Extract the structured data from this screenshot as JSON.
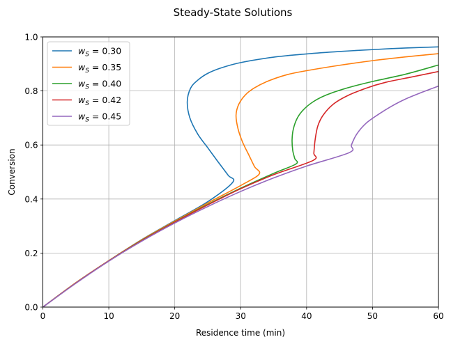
{
  "chart_data": {
    "type": "line",
    "title": "Steady-State Solutions",
    "xlabel": "Residence time (min)",
    "ylabel": "Conversion",
    "xlim": [
      0,
      60
    ],
    "ylim": [
      0,
      1.0
    ],
    "xticks": [
      0,
      10,
      20,
      30,
      40,
      50,
      60
    ],
    "yticks": [
      0.0,
      0.2,
      0.4,
      0.6,
      0.8,
      1.0
    ],
    "xtick_labels": [
      "0",
      "10",
      "20",
      "30",
      "40",
      "50",
      "60"
    ],
    "ytick_labels": [
      "0.0",
      "0.2",
      "0.4",
      "0.6",
      "0.8",
      "1.0"
    ],
    "grid": true,
    "legend_position": "upper-left",
    "series": [
      {
        "name": "w_S = 0.30",
        "legend_base": "w",
        "legend_sub": "S",
        "legend_value": " = 0.30",
        "color": "#1f77b4",
        "points": [
          [
            0,
            0
          ],
          [
            5,
            0.09
          ],
          [
            10,
            0.172
          ],
          [
            15,
            0.25
          ],
          [
            20,
            0.32
          ],
          [
            25,
            0.39
          ],
          [
            28.8,
            0.462
          ],
          [
            28.1,
            0.488
          ],
          [
            26.5,
            0.54
          ],
          [
            25,
            0.59
          ],
          [
            23.5,
            0.64
          ],
          [
            22.3,
            0.7
          ],
          [
            21.9,
            0.76
          ],
          [
            22.4,
            0.81
          ],
          [
            23.5,
            0.84
          ],
          [
            25,
            0.865
          ],
          [
            27,
            0.885
          ],
          [
            30,
            0.905
          ],
          [
            35,
            0.925
          ],
          [
            40,
            0.937
          ],
          [
            45,
            0.946
          ],
          [
            50,
            0.953
          ],
          [
            55,
            0.959
          ],
          [
            60,
            0.963
          ]
        ]
      },
      {
        "name": "w_S = 0.35",
        "legend_base": "w",
        "legend_sub": "S",
        "legend_value": " = 0.35",
        "color": "#ff7f0e",
        "points": [
          [
            0,
            0
          ],
          [
            5,
            0.09
          ],
          [
            10,
            0.172
          ],
          [
            15,
            0.249
          ],
          [
            20,
            0.318
          ],
          [
            25,
            0.385
          ],
          [
            30,
            0.45
          ],
          [
            32.8,
            0.492
          ],
          [
            32.1,
            0.52
          ],
          [
            31.3,
            0.56
          ],
          [
            30.3,
            0.61
          ],
          [
            29.6,
            0.66
          ],
          [
            29.3,
            0.71
          ],
          [
            29.7,
            0.75
          ],
          [
            30.7,
            0.785
          ],
          [
            32,
            0.81
          ],
          [
            34,
            0.835
          ],
          [
            37,
            0.86
          ],
          [
            40,
            0.875
          ],
          [
            45,
            0.895
          ],
          [
            50,
            0.912
          ],
          [
            55,
            0.926
          ],
          [
            60,
            0.938
          ]
        ]
      },
      {
        "name": "w_S = 0.40",
        "legend_base": "w",
        "legend_sub": "S",
        "legend_value": " = 0.40",
        "color": "#2ca02c",
        "points": [
          [
            0,
            0
          ],
          [
            5,
            0.089
          ],
          [
            10,
            0.171
          ],
          [
            15,
            0.247
          ],
          [
            20,
            0.315
          ],
          [
            25,
            0.38
          ],
          [
            30,
            0.44
          ],
          [
            35,
            0.495
          ],
          [
            38.4,
            0.53
          ],
          [
            38.2,
            0.55
          ],
          [
            37.9,
            0.58
          ],
          [
            37.8,
            0.62
          ],
          [
            38,
            0.66
          ],
          [
            38.6,
            0.7
          ],
          [
            39.5,
            0.73
          ],
          [
            41,
            0.76
          ],
          [
            43,
            0.785
          ],
          [
            46,
            0.81
          ],
          [
            50,
            0.835
          ],
          [
            55,
            0.862
          ],
          [
            60,
            0.896
          ]
        ]
      },
      {
        "name": "w_S = 0.42",
        "legend_base": "w",
        "legend_sub": "S",
        "legend_value": " = 0.42",
        "color": "#d62728",
        "points": [
          [
            0,
            0
          ],
          [
            5,
            0.089
          ],
          [
            10,
            0.171
          ],
          [
            15,
            0.246
          ],
          [
            20,
            0.314
          ],
          [
            25,
            0.378
          ],
          [
            30,
            0.438
          ],
          [
            35,
            0.49
          ],
          [
            41,
            0.543
          ],
          [
            41.1,
            0.57
          ],
          [
            41.3,
            0.62
          ],
          [
            41.7,
            0.67
          ],
          [
            42.5,
            0.71
          ],
          [
            44,
            0.75
          ],
          [
            46,
            0.78
          ],
          [
            49,
            0.81
          ],
          [
            52,
            0.832
          ],
          [
            56,
            0.852
          ],
          [
            60,
            0.872
          ]
        ]
      },
      {
        "name": "w_S = 0.45",
        "legend_base": "w",
        "legend_sub": "S",
        "legend_value": " = 0.45",
        "color": "#9467bd",
        "points": [
          [
            0,
            0
          ],
          [
            5,
            0.088
          ],
          [
            10,
            0.17
          ],
          [
            15,
            0.244
          ],
          [
            20,
            0.311
          ],
          [
            25,
            0.372
          ],
          [
            30,
            0.428
          ],
          [
            35,
            0.478
          ],
          [
            40,
            0.522
          ],
          [
            46.5,
            0.572
          ],
          [
            46.8,
            0.6
          ],
          [
            47.6,
            0.64
          ],
          [
            49,
            0.68
          ],
          [
            51,
            0.715
          ],
          [
            53,
            0.745
          ],
          [
            55,
            0.77
          ],
          [
            57.5,
            0.795
          ],
          [
            60,
            0.818
          ]
        ]
      }
    ]
  }
}
